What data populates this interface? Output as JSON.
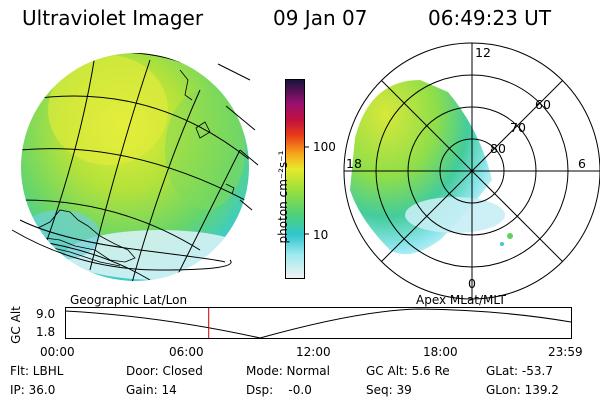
{
  "header": {
    "title": "Ultraviolet Imager",
    "date": "09 Jan 07",
    "time": "06:49:23 UT"
  },
  "colorbar": {
    "label": "photon cm⁻²s⁻¹",
    "ticks": [
      "100",
      "10"
    ]
  },
  "polar_plot": {
    "mlt_labels": [
      "12",
      "18",
      "6",
      "0"
    ],
    "lat_labels": [
      "60",
      "70",
      "80"
    ]
  },
  "timeline": {
    "left_title": "Geographic Lat/Lon",
    "right_title": "Apex  MLat/MLT",
    "y_axis_label": "GC Alt",
    "y_max": "9.0",
    "y_min": "1.8",
    "time_ticks": [
      "00:00",
      "06:00",
      "12:00",
      "18:00",
      "23:59"
    ],
    "current_time_fraction": 0.284
  },
  "info": {
    "flt": "Flt: LBHL",
    "ip": "IP: 36.0",
    "door": "Door: Closed",
    "gain": "Gain: 14",
    "mode": "Mode: Normal",
    "dsp": "Dsp:    -0.0",
    "gcalt": "GC Alt: 5.6 Re",
    "seq": "Seq: 39",
    "glat": "GLat: -53.7",
    "glon": "GLon: 139.2"
  },
  "colors": {
    "accent_line": "#cc0000",
    "background": "#ffffff"
  }
}
